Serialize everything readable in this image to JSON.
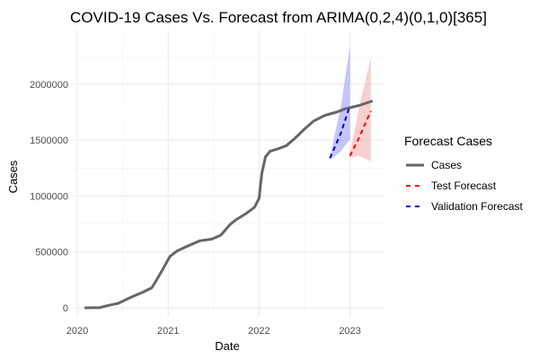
{
  "chart_data": {
    "type": "line",
    "title": "COVID-19 Cases Vs. Forecast from ARIMA(0,2,4)(0,1,0)[365]",
    "xlabel": "Date",
    "ylabel": "Cases",
    "xlim": [
      2019.96,
      2023.38
    ],
    "ylim": [
      -80000,
      2480000
    ],
    "x_ticks": [
      2020,
      2021,
      2022,
      2023
    ],
    "x_tick_labels": [
      "2020",
      "2021",
      "2022",
      "2023"
    ],
    "y_ticks": [
      0,
      500000,
      1000000,
      1500000,
      2000000
    ],
    "y_tick_labels": [
      "0",
      "500000",
      "1000000",
      "1500000",
      "2000000"
    ],
    "grid": true,
    "legend": {
      "title": "Forecast Cases",
      "position": "right",
      "items": [
        {
          "label": "Cases",
          "color": "#666666",
          "style": "solid"
        },
        {
          "label": "Test Forecast",
          "color": "#ff0000",
          "style": "dashed"
        },
        {
          "label": "Validation Forecast",
          "color": "#0000cc",
          "style": "dashed"
        }
      ]
    },
    "series": [
      {
        "name": "Cases",
        "color": "#666666",
        "points": [
          [
            2020.08,
            0
          ],
          [
            2020.25,
            3000
          ],
          [
            2020.32,
            18000
          ],
          [
            2020.45,
            40000
          ],
          [
            2020.55,
            80000
          ],
          [
            2020.62,
            105000
          ],
          [
            2020.72,
            140000
          ],
          [
            2020.82,
            180000
          ],
          [
            2020.88,
            260000
          ],
          [
            2020.95,
            360000
          ],
          [
            2021.02,
            460000
          ],
          [
            2021.1,
            510000
          ],
          [
            2021.22,
            555000
          ],
          [
            2021.35,
            600000
          ],
          [
            2021.48,
            615000
          ],
          [
            2021.58,
            650000
          ],
          [
            2021.68,
            745000
          ],
          [
            2021.75,
            790000
          ],
          [
            2021.85,
            840000
          ],
          [
            2021.95,
            900000
          ],
          [
            2022.0,
            980000
          ],
          [
            2022.03,
            1200000
          ],
          [
            2022.07,
            1350000
          ],
          [
            2022.12,
            1400000
          ],
          [
            2022.2,
            1420000
          ],
          [
            2022.3,
            1450000
          ],
          [
            2022.4,
            1520000
          ],
          [
            2022.5,
            1600000
          ],
          [
            2022.6,
            1670000
          ],
          [
            2022.72,
            1720000
          ],
          [
            2022.85,
            1750000
          ],
          [
            2022.95,
            1780000
          ],
          [
            2023.1,
            1810000
          ],
          [
            2023.25,
            1850000
          ]
        ]
      },
      {
        "name": "Validation Forecast",
        "color": "#0000cc",
        "band_color": "#6e6ef6",
        "points": [
          [
            2022.78,
            1340000
          ],
          [
            2022.9,
            1560000
          ],
          [
            2023.0,
            1810000
          ]
        ],
        "band_lower": [
          [
            2022.78,
            1320000
          ],
          [
            2022.9,
            1400000
          ],
          [
            2023.0,
            1510000
          ]
        ],
        "band_upper": [
          [
            2022.78,
            1350000
          ],
          [
            2022.9,
            1800000
          ],
          [
            2023.0,
            2340000
          ]
        ]
      },
      {
        "name": "Test Forecast",
        "color": "#ff0000",
        "band_color": "#f08a8a",
        "points": [
          [
            2023.0,
            1360000
          ],
          [
            2023.1,
            1520000
          ],
          [
            2023.23,
            1760000
          ]
        ],
        "band_lower": [
          [
            2023.0,
            1340000
          ],
          [
            2023.1,
            1360000
          ],
          [
            2023.23,
            1310000
          ]
        ],
        "band_upper": [
          [
            2023.0,
            1380000
          ],
          [
            2023.1,
            1790000
          ],
          [
            2023.23,
            2240000
          ]
        ]
      }
    ]
  }
}
